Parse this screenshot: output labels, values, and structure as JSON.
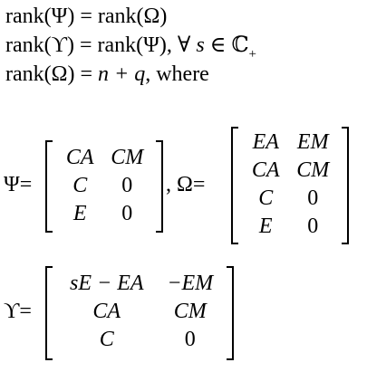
{
  "lines": [
    {
      "pre": "rank(Ψ) = rank(Ω)",
      "it": "",
      "post": "",
      "sub": ""
    },
    {
      "pre": "rank(ϒ) = rank(Ψ), ∀ ",
      "it": "s",
      "post": " ∈ ℂ",
      "sub": "+"
    },
    {
      "pre": "rank(Ω) = ",
      "it": "n + q",
      "post": ", where",
      "sub": ""
    }
  ],
  "labels": {
    "psi": "Ψ=",
    "comma_omega": ",  Ω=",
    "upsilon": "ϒ="
  },
  "psi": [
    [
      "CA",
      "CM"
    ],
    [
      "C",
      "0"
    ],
    [
      "E",
      "0"
    ]
  ],
  "omega": [
    [
      "EA",
      "EM"
    ],
    [
      "CA",
      "CM"
    ],
    [
      "C",
      "0"
    ],
    [
      "E",
      "0"
    ]
  ],
  "upsilon": [
    [
      "sE − EA",
      "−EM"
    ],
    [
      "CA",
      "CM"
    ],
    [
      "C",
      "0"
    ]
  ]
}
